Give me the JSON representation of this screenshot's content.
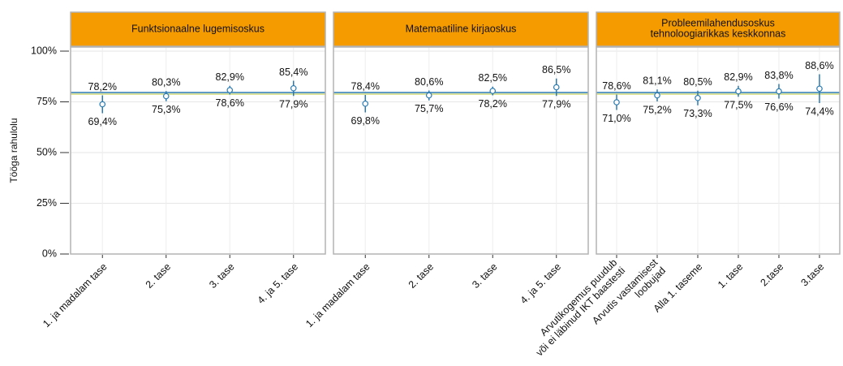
{
  "chart_data": [
    {
      "type": "errorbar",
      "strip": "Funktsionaalne lugemisoskus",
      "y_label": "Tööga rahulolu",
      "categories": [
        "1. ja madalam tase",
        "2. tase",
        "3. tase",
        "4. ja 5. tase"
      ],
      "values": [
        73.8,
        77.8,
        80.8,
        81.7
      ],
      "lower": [
        69.4,
        75.3,
        78.6,
        77.9
      ],
      "lower_labels": [
        "69,4%",
        "75,3%",
        "78,6%",
        "77,9%"
      ],
      "upper": [
        78.2,
        80.3,
        82.9,
        85.4
      ],
      "upper_labels": [
        "78,2%",
        "80,3%",
        "82,9%",
        "85,4%"
      ],
      "color": "#2a7ab0",
      "strip_color": "#f59b00",
      "hlines": [
        {
          "value": 79.6,
          "color": "#2a7ab0"
        },
        {
          "value": 78.8,
          "color": "#cfd97a"
        }
      ],
      "ylim": [
        0,
        102
      ],
      "yticks": [
        {
          "value": 0,
          "label": "0%"
        },
        {
          "value": 25,
          "label": "25%"
        },
        {
          "value": 50,
          "label": "50%"
        },
        {
          "value": 75,
          "label": "75%"
        },
        {
          "value": 100,
          "label": "100%"
        }
      ],
      "grid": true
    },
    {
      "type": "errorbar",
      "strip": "Matemaatiline kirjaoskus",
      "categories": [
        "1. ja madalam tase",
        "2. tase",
        "3. tase",
        "4. ja 5. tase"
      ],
      "values": [
        74.1,
        78.2,
        80.4,
        82.2
      ],
      "lower": [
        69.8,
        75.7,
        78.2,
        77.9
      ],
      "lower_labels": [
        "69,8%",
        "75,7%",
        "78,2%",
        "77,9%"
      ],
      "upper": [
        78.4,
        80.6,
        82.5,
        86.5
      ],
      "upper_labels": [
        "78,4%",
        "80,6%",
        "82,5%",
        "86,5%"
      ],
      "color": "#2a7ab0",
      "strip_color": "#f59b00",
      "hlines": [
        {
          "value": 79.6,
          "color": "#2a7ab0"
        },
        {
          "value": 78.8,
          "color": "#cfd97a"
        }
      ],
      "ylim": [
        0,
        102
      ],
      "grid": true
    },
    {
      "type": "errorbar",
      "strip": [
        "Probleemilahendusoskus",
        "tehnoloogiarikkas keskkonnas"
      ],
      "categories": [
        [
          "Arvutikogemus puudub",
          "või ei läbinud IKT baastesti"
        ],
        [
          "Arvutis vastamisest",
          "loobujad"
        ],
        "Alla 1. taseme",
        "1. tase",
        "2.tase",
        "3.tase"
      ],
      "values": [
        74.8,
        78.2,
        76.9,
        80.2,
        80.2,
        81.5
      ],
      "lower": [
        71.0,
        75.2,
        73.3,
        77.5,
        76.6,
        74.4
      ],
      "lower_labels": [
        "71,0%",
        "75,2%",
        "73,3%",
        "77,5%",
        "76,6%",
        "74,4%"
      ],
      "upper": [
        78.6,
        81.1,
        80.5,
        82.9,
        83.8,
        88.6
      ],
      "upper_labels": [
        "78,6%",
        "81,1%",
        "80,5%",
        "82,9%",
        "83,8%",
        "88,6%"
      ],
      "color": "#2a7ab0",
      "strip_color": "#f59b00",
      "hlines": [
        {
          "value": 79.6,
          "color": "#2a7ab0"
        },
        {
          "value": 78.8,
          "color": "#cfd97a"
        }
      ],
      "ylim": [
        0,
        102
      ],
      "grid": true
    }
  ]
}
